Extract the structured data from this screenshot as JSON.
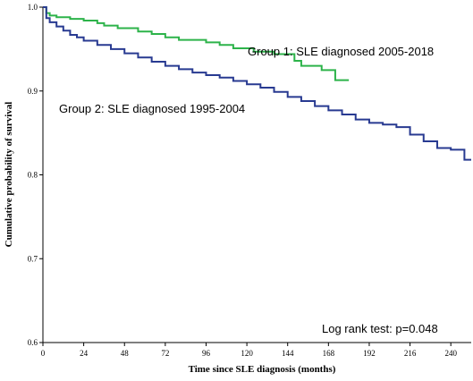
{
  "chart_data": {
    "type": "line",
    "xlabel": "Time since SLE diagnosis (months)",
    "ylabel": "Cumulative probability of survival",
    "xlim": [
      0,
      252
    ],
    "ylim": [
      0.6,
      1.0
    ],
    "x_ticks": [
      0,
      24,
      48,
      72,
      96,
      120,
      144,
      168,
      192,
      216,
      240
    ],
    "y_ticks": [
      0.6,
      0.7,
      0.8,
      0.9,
      1.0
    ],
    "y_tick_labels": [
      "0.6",
      "0.7",
      "0.8",
      "0.9",
      "1.0"
    ],
    "grid": false,
    "step": true,
    "series": [
      {
        "name": "Group 1: SLE diagnosed 2005-2018",
        "color": "#2db34a",
        "x": [
          0,
          2,
          4,
          8,
          16,
          24,
          32,
          36,
          44,
          56,
          64,
          72,
          80,
          96,
          104,
          112,
          124,
          136,
          148,
          152,
          164,
          172,
          180
        ],
        "y": [
          1.0,
          0.993,
          0.99,
          0.988,
          0.986,
          0.984,
          0.981,
          0.978,
          0.975,
          0.971,
          0.968,
          0.964,
          0.961,
          0.958,
          0.955,
          0.951,
          0.947,
          0.944,
          0.936,
          0.93,
          0.925,
          0.913,
          0.913
        ]
      },
      {
        "name": "Group 2: SLE diagnosed 1995-2004",
        "color": "#283a91",
        "x": [
          0,
          2,
          4,
          8,
          12,
          16,
          20,
          24,
          32,
          40,
          48,
          56,
          64,
          72,
          80,
          88,
          96,
          104,
          112,
          120,
          128,
          136,
          144,
          152,
          160,
          168,
          176,
          184,
          192,
          200,
          208,
          216,
          224,
          232,
          240,
          248,
          252
        ],
        "y": [
          1.0,
          0.987,
          0.982,
          0.977,
          0.972,
          0.967,
          0.964,
          0.96,
          0.955,
          0.95,
          0.945,
          0.94,
          0.935,
          0.93,
          0.926,
          0.922,
          0.919,
          0.916,
          0.912,
          0.908,
          0.904,
          0.899,
          0.893,
          0.888,
          0.882,
          0.877,
          0.872,
          0.866,
          0.862,
          0.86,
          0.857,
          0.848,
          0.84,
          0.832,
          0.83,
          0.818,
          0.818
        ]
      }
    ],
    "annotations": {
      "group1_label": "Group 1: SLE diagnosed 2005-2018",
      "group2_label": "Group 2: SLE diagnosed 1995-2004",
      "logrank": "Log rank test: p=0.048"
    }
  }
}
